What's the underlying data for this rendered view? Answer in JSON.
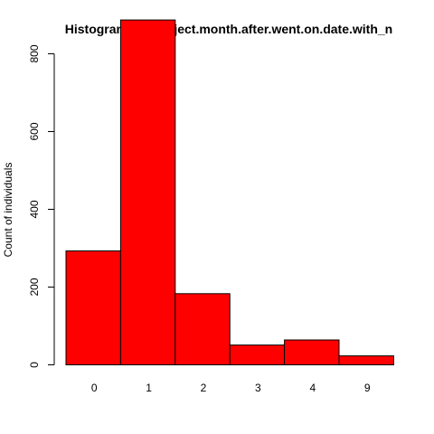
{
  "chart_data": {
    "type": "bar",
    "title": "Histogram for subject.month.after.went.on.date.with_n",
    "xlabel": "",
    "ylabel": "Count of individuals",
    "categories": [
      "0",
      "1",
      "2",
      "3",
      "4",
      "9"
    ],
    "values": [
      293,
      887,
      183,
      51,
      64,
      23
    ],
    "ylim": [
      0,
      900
    ],
    "yticks": [
      0,
      200,
      400,
      600,
      800
    ],
    "bar_color": "#ff0000",
    "grid": false,
    "legend": "none"
  }
}
